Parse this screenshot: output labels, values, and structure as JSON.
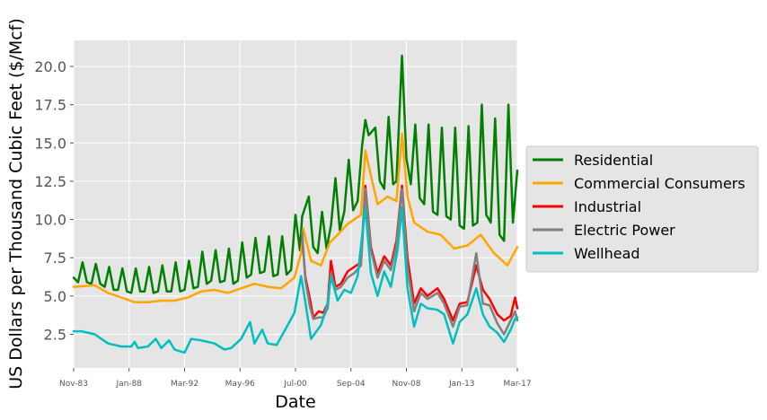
{
  "chart_data": {
    "type": "line",
    "title": "",
    "xlabel": "Date",
    "ylabel": "US Dollars per Thousand Cubic Feet ($/Mcf)",
    "x_range": [
      "1983-11",
      "2017-03"
    ],
    "ylim": [
      0.3,
      21.7
    ],
    "grid": true,
    "legend_position": "right-outside",
    "x_tick_labels": [
      "Nov-83",
      "Jan-88",
      "Mar-92",
      "May-96",
      "Jul-00",
      "Sep-04",
      "Nov-08",
      "Jan-13",
      "Mar-17"
    ],
    "y_tick_labels": [
      "2.5",
      "5.0",
      "7.5",
      "10.0",
      "12.5",
      "15.0",
      "17.5",
      "20.0"
    ],
    "y_ticks": [
      2.5,
      5.0,
      7.5,
      10.0,
      12.5,
      15.0,
      17.5,
      20.0
    ],
    "series": [
      {
        "name": "Residential",
        "color": "#008000",
        "points": [
          [
            "1983-11",
            6.2
          ],
          [
            "1984-03",
            5.9
          ],
          [
            "1984-07",
            7.2
          ],
          [
            "1984-11",
            5.9
          ],
          [
            "1985-03",
            5.8
          ],
          [
            "1985-07",
            7.1
          ],
          [
            "1985-11",
            5.8
          ],
          [
            "1986-03",
            5.6
          ],
          [
            "1986-07",
            6.9
          ],
          [
            "1986-11",
            5.4
          ],
          [
            "1987-03",
            5.4
          ],
          [
            "1987-07",
            6.8
          ],
          [
            "1987-11",
            5.3
          ],
          [
            "1988-03",
            5.2
          ],
          [
            "1988-07",
            6.8
          ],
          [
            "1988-11",
            5.3
          ],
          [
            "1989-03",
            5.3
          ],
          [
            "1989-07",
            6.9
          ],
          [
            "1989-11",
            5.2
          ],
          [
            "1990-03",
            5.3
          ],
          [
            "1990-07",
            7.0
          ],
          [
            "1990-11",
            5.3
          ],
          [
            "1991-03",
            5.3
          ],
          [
            "1991-07",
            7.2
          ],
          [
            "1991-11",
            5.3
          ],
          [
            "1992-03",
            5.4
          ],
          [
            "1992-07",
            7.3
          ],
          [
            "1992-11",
            5.5
          ],
          [
            "1993-03",
            5.6
          ],
          [
            "1993-07",
            7.9
          ],
          [
            "1993-11",
            5.8
          ],
          [
            "1994-03",
            6.0
          ],
          [
            "1994-07",
            8.0
          ],
          [
            "1994-11",
            5.9
          ],
          [
            "1995-03",
            6.0
          ],
          [
            "1995-07",
            8.1
          ],
          [
            "1995-11",
            5.8
          ],
          [
            "1996-03",
            6.0
          ],
          [
            "1996-07",
            8.5
          ],
          [
            "1996-11",
            6.2
          ],
          [
            "1997-03",
            6.4
          ],
          [
            "1997-07",
            8.8
          ],
          [
            "1997-11",
            6.5
          ],
          [
            "1998-03",
            6.6
          ],
          [
            "1998-07",
            8.9
          ],
          [
            "1998-11",
            6.3
          ],
          [
            "1999-03",
            6.4
          ],
          [
            "1999-07",
            8.9
          ],
          [
            "1999-11",
            6.4
          ],
          [
            "2000-03",
            6.7
          ],
          [
            "2000-07",
            10.3
          ],
          [
            "2000-11",
            8.0
          ],
          [
            "2001-01",
            10.2
          ],
          [
            "2001-07",
            11.5
          ],
          [
            "2001-11",
            8.2
          ],
          [
            "2002-03",
            7.8
          ],
          [
            "2002-07",
            10.5
          ],
          [
            "2002-11",
            8.1
          ],
          [
            "2003-03",
            9.6
          ],
          [
            "2003-07",
            12.7
          ],
          [
            "2003-11",
            9.3
          ],
          [
            "2004-03",
            10.5
          ],
          [
            "2004-07",
            13.9
          ],
          [
            "2004-11",
            10.6
          ],
          [
            "2005-03",
            11.2
          ],
          [
            "2005-07",
            14.8
          ],
          [
            "2005-10",
            16.5
          ],
          [
            "2006-01",
            15.5
          ],
          [
            "2006-07",
            16.0
          ],
          [
            "2006-11",
            12.5
          ],
          [
            "2007-03",
            12.0
          ],
          [
            "2007-07",
            16.7
          ],
          [
            "2007-11",
            12.3
          ],
          [
            "2008-02",
            12.5
          ],
          [
            "2008-07",
            20.7
          ],
          [
            "2008-11",
            14.0
          ],
          [
            "2009-03",
            12.3
          ],
          [
            "2009-07",
            16.2
          ],
          [
            "2009-11",
            11.4
          ],
          [
            "2010-03",
            11.0
          ],
          [
            "2010-07",
            16.2
          ],
          [
            "2010-11",
            10.5
          ],
          [
            "2011-03",
            10.3
          ],
          [
            "2011-07",
            16.0
          ],
          [
            "2011-11",
            10.2
          ],
          [
            "2012-03",
            10.0
          ],
          [
            "2012-07",
            16.0
          ],
          [
            "2012-11",
            9.6
          ],
          [
            "2013-03",
            9.4
          ],
          [
            "2013-07",
            16.1
          ],
          [
            "2013-11",
            9.6
          ],
          [
            "2014-03",
            9.8
          ],
          [
            "2014-07",
            17.5
          ],
          [
            "2014-11",
            10.3
          ],
          [
            "2015-03",
            9.8
          ],
          [
            "2015-07",
            16.6
          ],
          [
            "2015-11",
            9.0
          ],
          [
            "2016-03",
            8.6
          ],
          [
            "2016-07",
            17.5
          ],
          [
            "2016-11",
            9.8
          ],
          [
            "2017-03",
            13.2
          ]
        ]
      },
      {
        "name": "Commercial Consumers",
        "color": "#ffa500",
        "points": [
          [
            "1983-11",
            5.6
          ],
          [
            "1985-06",
            5.7
          ],
          [
            "1986-06",
            5.2
          ],
          [
            "1987-06",
            4.9
          ],
          [
            "1988-06",
            4.6
          ],
          [
            "1989-06",
            4.6
          ],
          [
            "1990-06",
            4.7
          ],
          [
            "1991-06",
            4.7
          ],
          [
            "1992-06",
            4.9
          ],
          [
            "1993-06",
            5.3
          ],
          [
            "1994-06",
            5.4
          ],
          [
            "1995-06",
            5.2
          ],
          [
            "1996-06",
            5.5
          ],
          [
            "1997-06",
            5.8
          ],
          [
            "1998-06",
            5.6
          ],
          [
            "1999-06",
            5.5
          ],
          [
            "2000-06",
            6.2
          ],
          [
            "2000-12",
            7.8
          ],
          [
            "2001-02",
            9.4
          ],
          [
            "2001-09",
            7.3
          ],
          [
            "2002-06",
            7.0
          ],
          [
            "2003-02",
            8.5
          ],
          [
            "2003-09",
            9.0
          ],
          [
            "2004-06",
            9.7
          ],
          [
            "2005-06",
            10.3
          ],
          [
            "2005-10",
            14.5
          ],
          [
            "2006-02",
            13.2
          ],
          [
            "2006-09",
            11.0
          ],
          [
            "2007-06",
            11.5
          ],
          [
            "2008-02",
            11.2
          ],
          [
            "2008-07",
            15.6
          ],
          [
            "2008-12",
            11.5
          ],
          [
            "2009-06",
            9.8
          ],
          [
            "2010-06",
            9.2
          ],
          [
            "2011-06",
            9.0
          ],
          [
            "2012-06",
            8.1
          ],
          [
            "2013-06",
            8.3
          ],
          [
            "2014-06",
            9.0
          ],
          [
            "2015-06",
            7.8
          ],
          [
            "2016-06",
            7.0
          ],
          [
            "2017-03",
            8.2
          ]
        ]
      },
      {
        "name": "Industrial",
        "color": "#ff0000",
        "points": [
          [
            "2001-01",
            8.8
          ],
          [
            "2001-04",
            6.2
          ],
          [
            "2001-08",
            4.8
          ],
          [
            "2001-11",
            3.6
          ],
          [
            "2002-04",
            4.0
          ],
          [
            "2002-08",
            3.9
          ],
          [
            "2002-12",
            4.5
          ],
          [
            "2003-03",
            7.3
          ],
          [
            "2003-07",
            5.6
          ],
          [
            "2003-12",
            5.8
          ],
          [
            "2004-06",
            6.6
          ],
          [
            "2004-12",
            6.9
          ],
          [
            "2005-06",
            7.2
          ],
          [
            "2005-10",
            12.2
          ],
          [
            "2006-03",
            8.2
          ],
          [
            "2006-09",
            6.5
          ],
          [
            "2007-03",
            7.6
          ],
          [
            "2007-09",
            7.0
          ],
          [
            "2008-02",
            8.6
          ],
          [
            "2008-07",
            12.2
          ],
          [
            "2008-12",
            7.5
          ],
          [
            "2009-06",
            4.5
          ],
          [
            "2009-12",
            5.5
          ],
          [
            "2010-06",
            5.0
          ],
          [
            "2011-03",
            5.5
          ],
          [
            "2011-09",
            4.8
          ],
          [
            "2012-05",
            3.4
          ],
          [
            "2012-11",
            4.5
          ],
          [
            "2013-06",
            4.6
          ],
          [
            "2014-02",
            7.0
          ],
          [
            "2014-08",
            5.4
          ],
          [
            "2015-02",
            4.8
          ],
          [
            "2015-09",
            3.8
          ],
          [
            "2016-03",
            3.4
          ],
          [
            "2016-09",
            3.7
          ],
          [
            "2017-01",
            4.9
          ],
          [
            "2017-03",
            4.2
          ]
        ]
      },
      {
        "name": "Electric Power",
        "color": "#808080",
        "points": [
          [
            "2001-01",
            9.2
          ],
          [
            "2001-04",
            6.0
          ],
          [
            "2001-08",
            4.3
          ],
          [
            "2001-11",
            3.5
          ],
          [
            "2002-04",
            3.6
          ],
          [
            "2002-08",
            3.6
          ],
          [
            "2002-12",
            4.2
          ],
          [
            "2003-03",
            6.5
          ],
          [
            "2003-07",
            5.4
          ],
          [
            "2003-12",
            5.6
          ],
          [
            "2004-06",
            6.2
          ],
          [
            "2004-12",
            6.5
          ],
          [
            "2005-06",
            7.0
          ],
          [
            "2005-10",
            12.0
          ],
          [
            "2006-03",
            8.0
          ],
          [
            "2006-09",
            6.2
          ],
          [
            "2007-03",
            7.3
          ],
          [
            "2007-09",
            6.7
          ],
          [
            "2008-02",
            8.3
          ],
          [
            "2008-07",
            12.0
          ],
          [
            "2008-12",
            6.8
          ],
          [
            "2009-06",
            4.0
          ],
          [
            "2009-12",
            5.2
          ],
          [
            "2010-06",
            4.8
          ],
          [
            "2011-03",
            5.2
          ],
          [
            "2011-09",
            4.5
          ],
          [
            "2012-05",
            3.0
          ],
          [
            "2012-11",
            4.3
          ],
          [
            "2013-06",
            4.4
          ],
          [
            "2014-02",
            7.8
          ],
          [
            "2014-08",
            4.5
          ],
          [
            "2015-02",
            4.4
          ],
          [
            "2015-09",
            3.2
          ],
          [
            "2016-03",
            2.5
          ],
          [
            "2016-09",
            3.4
          ],
          [
            "2017-01",
            4.0
          ],
          [
            "2017-03",
            3.4
          ]
        ]
      },
      {
        "name": "Wellhead",
        "color": "#00bfbf",
        "points": [
          [
            "1983-11",
            2.7
          ],
          [
            "1984-06",
            2.7
          ],
          [
            "1985-06",
            2.5
          ],
          [
            "1986-06",
            1.9
          ],
          [
            "1987-06",
            1.7
          ],
          [
            "1988-03",
            1.7
          ],
          [
            "1988-06",
            2.0
          ],
          [
            "1988-09",
            1.6
          ],
          [
            "1989-06",
            1.7
          ],
          [
            "1990-01",
            2.2
          ],
          [
            "1990-06",
            1.6
          ],
          [
            "1991-01",
            2.1
          ],
          [
            "1991-06",
            1.5
          ],
          [
            "1992-03",
            1.3
          ],
          [
            "1992-09",
            2.2
          ],
          [
            "1993-06",
            2.1
          ],
          [
            "1994-06",
            1.9
          ],
          [
            "1995-03",
            1.5
          ],
          [
            "1995-09",
            1.6
          ],
          [
            "1996-06",
            2.2
          ],
          [
            "1997-02",
            3.3
          ],
          [
            "1997-06",
            1.9
          ],
          [
            "1998-01",
            2.8
          ],
          [
            "1998-06",
            1.9
          ],
          [
            "1999-02",
            1.8
          ],
          [
            "1999-09",
            2.7
          ],
          [
            "2000-06",
            3.9
          ],
          [
            "2000-12",
            6.3
          ],
          [
            "2001-03",
            5.0
          ],
          [
            "2001-09",
            2.2
          ],
          [
            "2002-06",
            3.1
          ],
          [
            "2002-12",
            4.5
          ],
          [
            "2003-03",
            6.3
          ],
          [
            "2003-09",
            4.7
          ],
          [
            "2004-03",
            5.4
          ],
          [
            "2004-09",
            5.2
          ],
          [
            "2005-03",
            6.3
          ],
          [
            "2005-10",
            10.8
          ],
          [
            "2006-03",
            6.5
          ],
          [
            "2006-09",
            5.0
          ],
          [
            "2007-03",
            6.6
          ],
          [
            "2007-09",
            5.6
          ],
          [
            "2008-03",
            8.0
          ],
          [
            "2008-07",
            10.8
          ],
          [
            "2008-12",
            5.5
          ],
          [
            "2009-06",
            3.0
          ],
          [
            "2009-12",
            4.5
          ],
          [
            "2010-06",
            4.2
          ],
          [
            "2011-03",
            4.1
          ],
          [
            "2011-09",
            3.8
          ],
          [
            "2012-05",
            1.9
          ],
          [
            "2012-11",
            3.3
          ],
          [
            "2013-06",
            3.8
          ],
          [
            "2014-02",
            5.5
          ],
          [
            "2014-08",
            3.8
          ],
          [
            "2015-02",
            3.0
          ],
          [
            "2015-09",
            2.6
          ],
          [
            "2016-03",
            2.0
          ],
          [
            "2016-09",
            2.8
          ],
          [
            "2017-01",
            3.5
          ],
          [
            "2017-03",
            3.6
          ]
        ]
      }
    ]
  }
}
